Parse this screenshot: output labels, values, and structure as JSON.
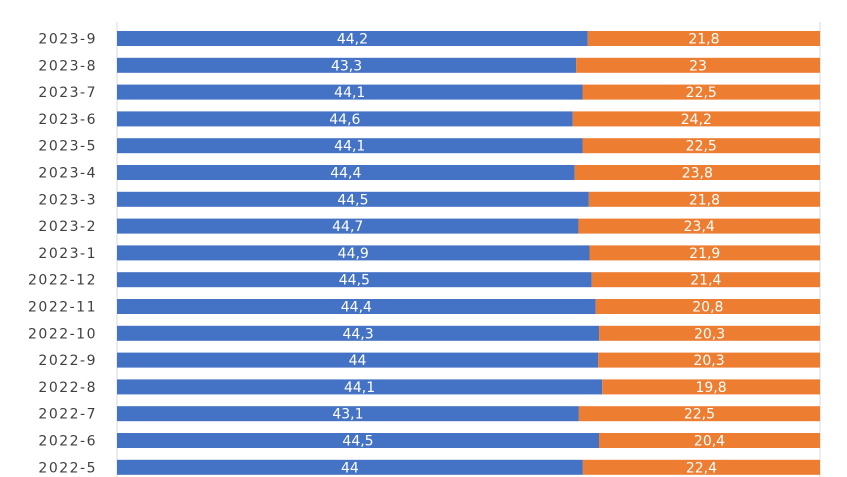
{
  "chart_data": {
    "type": "bar",
    "orientation": "horizontal",
    "stacked": "percent",
    "categories": [
      "2023-9",
      "2023-8",
      "2023-7",
      "2023-6",
      "2023-5",
      "2023-4",
      "2023-3",
      "2023-2",
      "2023-1",
      "2022-12",
      "2022-11",
      "2022-10",
      "2022-9",
      "2022-8",
      "2022-7",
      "2022-6",
      "2022-5"
    ],
    "series": [
      {
        "color": "#4472C4",
        "values": [
          44.2,
          43.3,
          44.1,
          44.6,
          44.1,
          44.4,
          44.5,
          44.7,
          44.9,
          44.5,
          44.4,
          44.3,
          44,
          44.1,
          43.1,
          44.5,
          44
        ],
        "labels": [
          "44,2",
          "43,3",
          "44,1",
          "44,6",
          "44,1",
          "44,4",
          "44,5",
          "44,7",
          "44,9",
          "44,5",
          "44,4",
          "44,3",
          "44",
          "44,1",
          "43,1",
          "44,5",
          "44"
        ]
      },
      {
        "color": "#ED7D31",
        "values": [
          21.8,
          23,
          22.5,
          24.2,
          22.5,
          23.8,
          21.8,
          23.4,
          21.9,
          21.4,
          20.8,
          20.3,
          20.3,
          19.8,
          22.5,
          20.4,
          22.4
        ],
        "labels": [
          "21,8",
          "23",
          "22,5",
          "24,2",
          "22,5",
          "23,8",
          "21,8",
          "23,4",
          "21,9",
          "21,4",
          "20,8",
          "20,3",
          "20,3",
          "19,8",
          "22,5",
          "20,4",
          "22,4"
        ]
      }
    ],
    "title": "",
    "xlabel": "",
    "ylabel": "",
    "grid": true,
    "legend": "none"
  }
}
